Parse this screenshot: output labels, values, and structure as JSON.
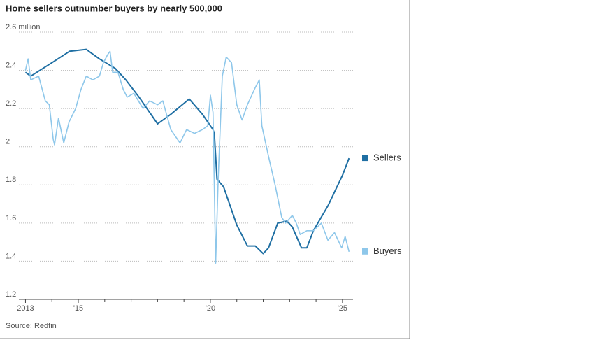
{
  "chart_data": {
    "type": "line",
    "title": "Home sellers outnumber buyers by nearly 500,000",
    "source": "Source: Redfin",
    "xlim": [
      2012.75,
      2025.4
    ],
    "xticks": [
      {
        "value": 2013,
        "label": "2013"
      },
      {
        "value": 2015,
        "label": "'15"
      },
      {
        "value": 2020,
        "label": "'20"
      },
      {
        "value": 2025,
        "label": "'25"
      }
    ],
    "xminorticks": [
      2014,
      2016,
      2017,
      2018,
      2019,
      2021,
      2022,
      2023,
      2024
    ],
    "ylim": [
      1.2,
      2.6
    ],
    "yticks": [
      1.2,
      1.4,
      1.6,
      1.8,
      2.0,
      2.2,
      2.4,
      {
        "value": 2.6,
        "label": "2.6 million"
      }
    ],
    "grid": true,
    "legend": "line-end",
    "series": [
      {
        "name": "Sellers",
        "color": "#1f6fa3",
        "x": [
          2013.0,
          2013.2,
          2014.0,
          2014.67,
          2015.3,
          2015.8,
          2016.4,
          2016.8,
          2017.3,
          2018.0,
          2018.5,
          2019.2,
          2019.7,
          2020.1,
          2020.15,
          2020.25,
          2020.5,
          2021.0,
          2021.4,
          2021.7,
          2022.0,
          2022.2,
          2022.55,
          2022.9,
          2023.1,
          2023.45,
          2023.65,
          2023.9,
          2024.45,
          2025.0,
          2025.25
        ],
        "values": [
          2.39,
          2.37,
          2.44,
          2.5,
          2.51,
          2.46,
          2.41,
          2.35,
          2.26,
          2.12,
          2.17,
          2.25,
          2.17,
          2.09,
          2.07,
          1.83,
          1.79,
          1.59,
          1.48,
          1.48,
          1.44,
          1.47,
          1.6,
          1.61,
          1.58,
          1.47,
          1.47,
          1.56,
          1.69,
          1.85,
          1.94
        ]
      },
      {
        "name": "Buyers",
        "color": "#8ec7ea",
        "x": [
          2013.0,
          2013.1,
          2013.2,
          2013.5,
          2013.75,
          2013.9,
          2014.05,
          2014.1,
          2014.25,
          2014.45,
          2014.65,
          2014.9,
          2015.1,
          2015.3,
          2015.55,
          2015.8,
          2015.95,
          2016.1,
          2016.2,
          2016.3,
          2016.5,
          2016.7,
          2016.85,
          2017.1,
          2017.45,
          2017.7,
          2018.0,
          2018.2,
          2018.5,
          2018.85,
          2019.1,
          2019.4,
          2019.7,
          2019.9,
          2020.0,
          2020.1,
          2020.2,
          2020.3,
          2020.45,
          2020.6,
          2020.8,
          2021.0,
          2021.2,
          2021.4,
          2021.7,
          2021.85,
          2021.95,
          2022.2,
          2022.45,
          2022.7,
          2022.85,
          2023.1,
          2023.25,
          2023.4,
          2023.65,
          2023.9,
          2024.2,
          2024.45,
          2024.7,
          2024.97,
          2025.1,
          2025.25
        ],
        "values": [
          2.4,
          2.46,
          2.35,
          2.37,
          2.24,
          2.22,
          2.04,
          2.01,
          2.15,
          2.02,
          2.13,
          2.2,
          2.3,
          2.37,
          2.35,
          2.37,
          2.44,
          2.48,
          2.5,
          2.39,
          2.39,
          2.3,
          2.26,
          2.28,
          2.2,
          2.24,
          2.22,
          2.24,
          2.09,
          2.02,
          2.09,
          2.07,
          2.09,
          2.11,
          2.27,
          2.18,
          1.39,
          1.85,
          2.37,
          2.47,
          2.44,
          2.22,
          2.14,
          2.22,
          2.31,
          2.35,
          2.11,
          1.95,
          1.8,
          1.63,
          1.6,
          1.64,
          1.6,
          1.54,
          1.56,
          1.56,
          1.6,
          1.51,
          1.55,
          1.47,
          1.53,
          1.45
        ]
      }
    ]
  }
}
